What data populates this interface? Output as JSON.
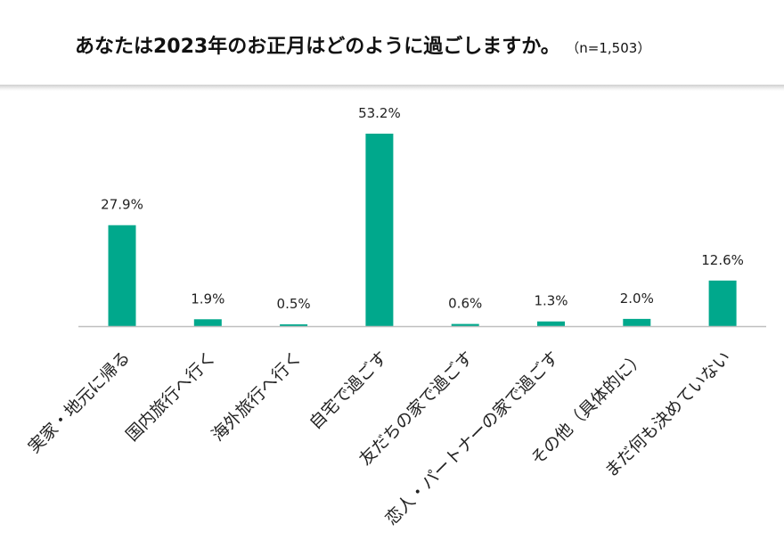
{
  "title": "あなたは2023年のお正月はどのように過ごしますか。",
  "sample_note": "（n=1,503）",
  "colors": {
    "bar": "#00A88C",
    "axis": "#bfbfbf",
    "text": "#222222"
  },
  "chart_data": {
    "type": "bar",
    "title": "あなたは2023年のお正月はどのように過ごしますか。",
    "categories": [
      "実家・地元に帰る",
      "国内旅行へ行く",
      "海外旅行へ行く",
      "自宅で過ごす",
      "友だちの家で過ごす",
      "恋人・パートナーの家で過ごす",
      "その他（具体的に）",
      "まだ何も決めていない"
    ],
    "values": [
      27.9,
      1.9,
      0.5,
      53.2,
      0.6,
      1.3,
      2.0,
      12.6
    ],
    "value_labels": [
      "27.9%",
      "1.9%",
      "0.5%",
      "53.2%",
      "0.6%",
      "1.3%",
      "2.0%",
      "12.6%"
    ],
    "unit": "%",
    "ylim": [
      0,
      53.2
    ],
    "grid": false,
    "legend": "none"
  }
}
